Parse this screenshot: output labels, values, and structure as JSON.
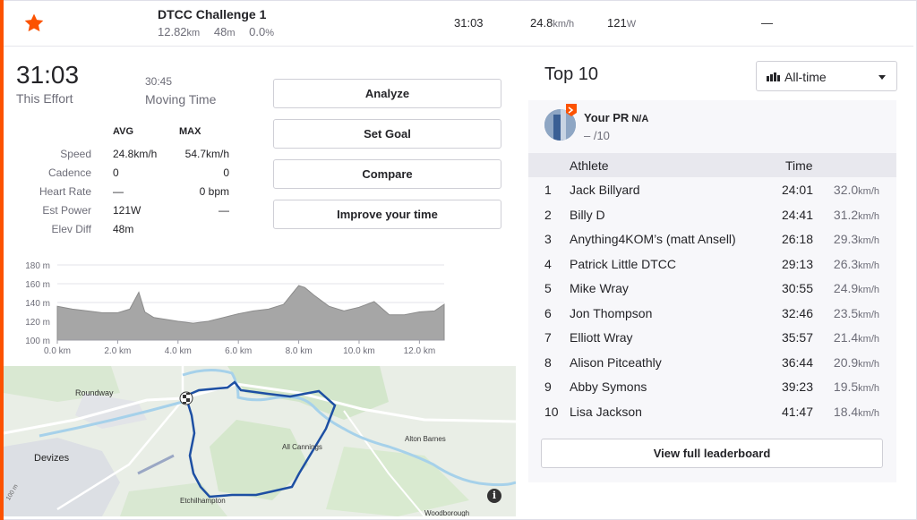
{
  "colors": {
    "accent": "#fc5200",
    "route": "#1d4fa3",
    "water": "#a6d1ea",
    "map_bg": "#e7ede3",
    "elev_fill": "#a6a6a6"
  },
  "header": {
    "segment_name": "DTCC Challenge 1",
    "distance": "12.82",
    "distance_unit": "km",
    "elevation": "48",
    "elevation_unit": "m",
    "grade": "0.0",
    "grade_unit": "%",
    "time": "31:03",
    "speed": "24.8",
    "speed_unit": "km/h",
    "power": "121",
    "power_unit": "W",
    "hr": "—"
  },
  "effort": {
    "time": "31:03",
    "time_label": "This Effort",
    "moving_time": "30:45",
    "moving_label": "Moving Time"
  },
  "stats": {
    "avg_header": "AVG",
    "max_header": "MAX",
    "rows": [
      {
        "label": "Speed",
        "avg": "24.8km/h",
        "max": "54.7km/h"
      },
      {
        "label": "Cadence",
        "avg": "0",
        "max": "0"
      },
      {
        "label": "Heart Rate",
        "avg": "—",
        "max": "0 bpm"
      },
      {
        "label": "Est Power",
        "avg": "121W",
        "max": "—"
      },
      {
        "label": "Elev Diff",
        "avg": "48m",
        "max": ""
      }
    ]
  },
  "actions": {
    "analyze": "Analyze",
    "set_goal": "Set Goal",
    "compare": "Compare",
    "improve": "Improve your time"
  },
  "chart_data": {
    "type": "area",
    "title": "",
    "xlabel": "",
    "ylabel": "",
    "x_ticks": [
      "0.0 km",
      "2.0 km",
      "4.0 km",
      "6.0 km",
      "8.0 km",
      "10.0 km",
      "12.0 km"
    ],
    "y_ticks": [
      "100 m",
      "120 m",
      "140 m",
      "160 m",
      "180 m"
    ],
    "xlim": [
      0,
      12.82
    ],
    "ylim": [
      100,
      180
    ],
    "grid": "horizontal",
    "x": [
      0,
      0.5,
      1.0,
      1.5,
      2.0,
      2.4,
      2.7,
      2.9,
      3.2,
      3.6,
      4.0,
      4.5,
      5.0,
      5.5,
      6.0,
      6.5,
      7.0,
      7.5,
      7.8,
      8.0,
      8.2,
      8.5,
      9.0,
      9.5,
      10.0,
      10.5,
      11.0,
      11.5,
      12.0,
      12.5,
      12.82
    ],
    "y": [
      136,
      133,
      131,
      129,
      129,
      133,
      151,
      130,
      124,
      122,
      120,
      118,
      120,
      124,
      128,
      131,
      133,
      138,
      150,
      158,
      156,
      148,
      136,
      131,
      135,
      141,
      127,
      127,
      130,
      131,
      138
    ]
  },
  "map": {
    "labels": [
      "Roundway",
      "Devizes",
      "All Cannings",
      "Alton Barnes",
      "Etchilhampton",
      "Woodborough",
      "100 m"
    ],
    "info_icon": "info-icon"
  },
  "leaderboard": {
    "title": "Top 10",
    "filter": "All-time",
    "pr_label": "Your PR",
    "pr_value": "N/A",
    "pr_rank": "– /10",
    "col_athlete": "Athlete",
    "col_time": "Time",
    "speed_unit": "km/h",
    "rows": [
      {
        "rank": "1",
        "name": "Jack Billyard",
        "time": "24:01",
        "speed": "32.0"
      },
      {
        "rank": "2",
        "name": "Billy D",
        "time": "24:41",
        "speed": "31.2"
      },
      {
        "rank": "3",
        "name": "Anything4KOM’s (matt Ansell)",
        "time": "26:18",
        "speed": "29.3"
      },
      {
        "rank": "4",
        "name": "Patrick Little DTCC",
        "time": "29:13",
        "speed": "26.3"
      },
      {
        "rank": "5",
        "name": "Mike Wray",
        "time": "30:55",
        "speed": "24.9"
      },
      {
        "rank": "6",
        "name": "Jon Thompson",
        "time": "32:46",
        "speed": "23.5"
      },
      {
        "rank": "7",
        "name": "Elliott Wray",
        "time": "35:57",
        "speed": "21.4"
      },
      {
        "rank": "8",
        "name": "Alison Pitceathly",
        "time": "36:44",
        "speed": "20.9"
      },
      {
        "rank": "9",
        "name": "Abby Symons",
        "time": "39:23",
        "speed": "19.5"
      },
      {
        "rank": "10",
        "name": "Lisa Jackson",
        "time": "41:47",
        "speed": "18.4"
      }
    ],
    "view_full": "View full leaderboard"
  }
}
